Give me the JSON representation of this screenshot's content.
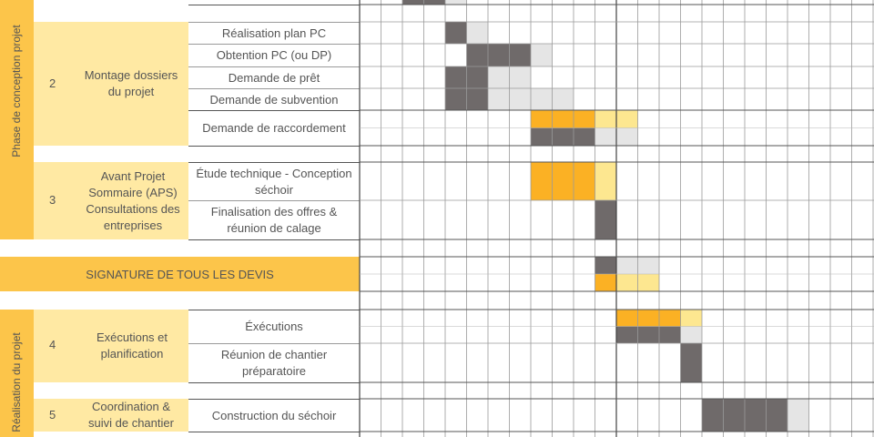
{
  "phases": [
    {
      "label": "Phase de conception projet"
    },
    {
      "label": "Réalisation du projet"
    }
  ],
  "lots": [
    {
      "number": "2",
      "title": "Montage dossiers du projet"
    },
    {
      "number": "3",
      "title": "Avant Projet Sommaire (APS) Consultations des entreprises"
    },
    {
      "number": "4",
      "title": "Exécutions et planification"
    },
    {
      "number": "5",
      "title": "Coordination & suivi de chantier"
    }
  ],
  "signature": {
    "label": "SIGNATURE DE TOUS LES DEVIS"
  },
  "colors": {
    "planned": "#6f6a6a",
    "planned_light": "#e5e5e5",
    "actual": "#fbb124",
    "actual_light": "#fde790",
    "phase": "#fcc54a",
    "lot": "#ffe9a3"
  },
  "chart_data": {
    "type": "table",
    "columns_visible": 24,
    "tasks": [
      {
        "name": "",
        "bars": [
          {
            "color": "planned",
            "start": 2,
            "end": 4
          },
          {
            "color": "planned_light",
            "start": 4,
            "end": 5
          }
        ]
      },
      {
        "name": "Réalisation plan PC",
        "bars": [
          {
            "color": "planned",
            "start": 4,
            "end": 5
          },
          {
            "color": "planned_light",
            "start": 5,
            "end": 6
          }
        ]
      },
      {
        "name": "Obtention PC (ou DP)",
        "bars": [
          {
            "color": "planned",
            "start": 5,
            "end": 8
          },
          {
            "color": "planned_light",
            "start": 8,
            "end": 9
          }
        ]
      },
      {
        "name": "Demande de prêt",
        "bars": [
          {
            "color": "planned",
            "start": 4,
            "end": 6
          },
          {
            "color": "planned_light",
            "start": 6,
            "end": 8
          }
        ]
      },
      {
        "name": "Demande de subvention",
        "bars": [
          {
            "color": "planned",
            "start": 4,
            "end": 6
          },
          {
            "color": "planned_light",
            "start": 6,
            "end": 10
          }
        ]
      },
      {
        "name": "Demande de raccordement",
        "bars": [
          {
            "color": "actual",
            "start": 8,
            "end": 11,
            "lane": "top"
          },
          {
            "color": "actual_light",
            "start": 11,
            "end": 13,
            "lane": "top"
          },
          {
            "color": "planned",
            "start": 8,
            "end": 11,
            "lane": "bottom"
          },
          {
            "color": "planned_light",
            "start": 11,
            "end": 13,
            "lane": "bottom"
          }
        ]
      },
      {
        "name": "Étude technique - Conception séchoir",
        "bars": [
          {
            "color": "actual",
            "start": 8,
            "end": 11
          },
          {
            "color": "actual_light",
            "start": 11,
            "end": 12
          }
        ]
      },
      {
        "name": "Finalisation des offres & réunion de calage",
        "bars": [
          {
            "color": "planned",
            "start": 11,
            "end": 12
          }
        ]
      },
      {
        "name": "SIGNATURE DE TOUS LES DEVIS",
        "bars": [
          {
            "color": "planned",
            "start": 11,
            "end": 12,
            "lane": "top"
          },
          {
            "color": "planned_light",
            "start": 12,
            "end": 14,
            "lane": "top"
          },
          {
            "color": "actual",
            "start": 11,
            "end": 12,
            "lane": "bottom"
          },
          {
            "color": "actual_light",
            "start": 12,
            "end": 14,
            "lane": "bottom"
          }
        ]
      },
      {
        "name": "Éxécutions",
        "bars": [
          {
            "color": "actual",
            "start": 12,
            "end": 15,
            "lane": "top"
          },
          {
            "color": "actual_light",
            "start": 15,
            "end": 16,
            "lane": "top"
          },
          {
            "color": "planned",
            "start": 12,
            "end": 15,
            "lane": "bottom"
          },
          {
            "color": "planned_light",
            "start": 15,
            "end": 16,
            "lane": "bottom"
          }
        ]
      },
      {
        "name": "Réunion de chantier préparatoire",
        "bars": [
          {
            "color": "planned",
            "start": 15,
            "end": 16
          }
        ]
      },
      {
        "name": "Construction du séchoir",
        "bars": [
          {
            "color": "planned",
            "start": 16,
            "end": 20
          },
          {
            "color": "planned_light",
            "start": 20,
            "end": 21
          }
        ]
      }
    ]
  }
}
